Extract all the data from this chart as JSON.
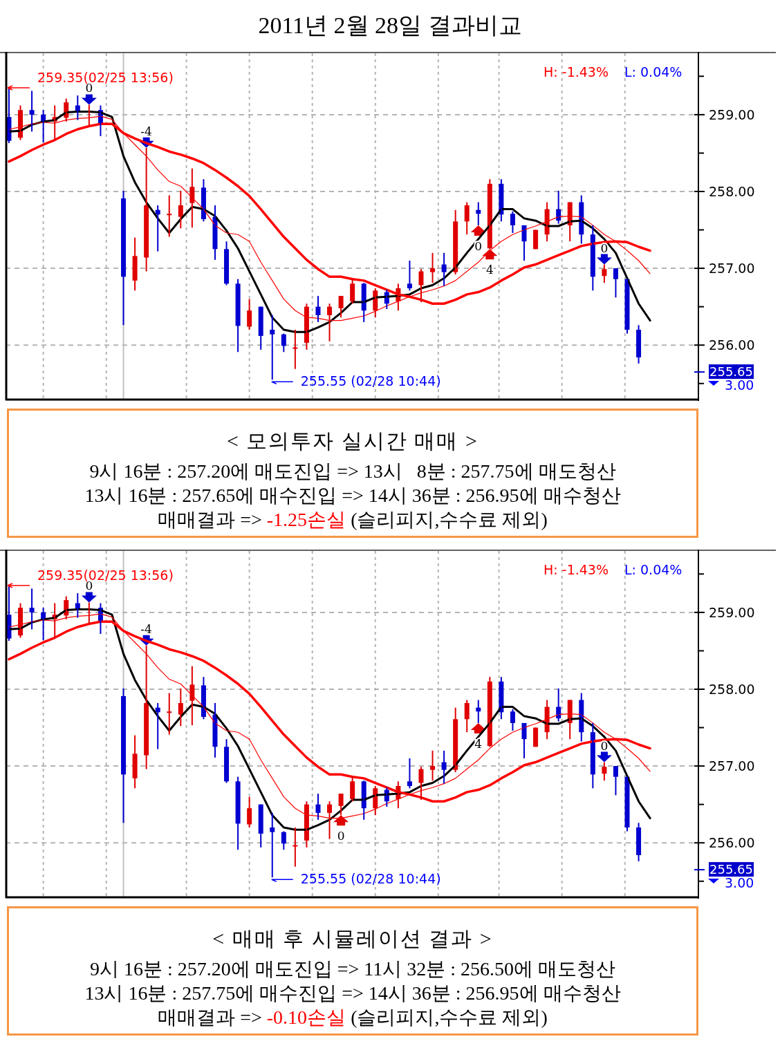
{
  "chart_data": [
    {
      "type": "candlestick",
      "title": "2011년 2월 28일 결과비교",
      "categories": [
        null,
        null,
        null,
        null,
        null,
        null,
        null,
        null,
        null,
        null,
        null,
        null,
        null,
        null,
        null,
        null,
        null,
        null,
        null,
        null,
        null,
        null,
        null,
        null,
        null,
        null,
        null,
        null,
        null,
        null,
        null,
        null,
        null,
        null,
        null,
        null,
        null,
        null,
        null,
        null,
        null,
        null,
        null,
        null,
        null,
        null,
        null,
        null,
        null,
        null,
        null,
        null,
        null,
        null,
        null,
        null,
        null
      ],
      "ohlc": [
        [
          258.97,
          259.35,
          258.63,
          258.66
        ],
        [
          258.7,
          259.12,
          258.67,
          259.06
        ],
        [
          259.06,
          259.31,
          258.78,
          259.0
        ],
        [
          259.0,
          259.06,
          258.64,
          258.91
        ],
        [
          258.91,
          259.12,
          258.67,
          258.97
        ],
        [
          258.96,
          259.21,
          258.91,
          259.16
        ],
        [
          259.12,
          259.25,
          258.93,
          259.05
        ],
        [
          259.03,
          259.13,
          258.85,
          259.05
        ],
        [
          259.06,
          259.12,
          258.72,
          258.87
        ],
        null,
        [
          257.91,
          258.01,
          256.26,
          256.89
        ],
        [
          256.84,
          257.4,
          256.71,
          257.16
        ],
        [
          257.14,
          258.57,
          256.96,
          257.82
        ],
        [
          257.76,
          257.82,
          257.22,
          257.7
        ],
        [
          257.7,
          257.95,
          257.41,
          257.71
        ],
        [
          257.67,
          258.01,
          257.52,
          257.82
        ],
        [
          257.85,
          258.3,
          257.53,
          258.06
        ],
        [
          258.05,
          258.16,
          257.61,
          257.64
        ],
        [
          257.67,
          257.82,
          257.11,
          257.25
        ],
        [
          257.25,
          257.35,
          256.78,
          256.8
        ],
        [
          256.8,
          256.86,
          255.91,
          256.25
        ],
        [
          256.24,
          256.6,
          256.2,
          256.45
        ],
        [
          256.5,
          256.5,
          255.94,
          256.12
        ],
        [
          256.2,
          256.39,
          255.55,
          256.14
        ],
        [
          256.14,
          256.15,
          255.91,
          255.99
        ],
        [
          255.96,
          256.2,
          255.69,
          255.97
        ],
        [
          256.03,
          256.54,
          255.94,
          256.5
        ],
        [
          256.5,
          256.64,
          256.3,
          256.39
        ],
        [
          256.39,
          256.54,
          256.05,
          256.5
        ],
        [
          256.48,
          256.64,
          256.36,
          256.64
        ],
        [
          256.57,
          256.87,
          256.54,
          256.8
        ],
        [
          256.8,
          256.81,
          256.3,
          256.45
        ],
        [
          256.45,
          256.74,
          256.36,
          256.71
        ],
        [
          256.69,
          256.72,
          256.47,
          256.54
        ],
        [
          256.57,
          256.8,
          256.45,
          256.74
        ],
        [
          256.8,
          257.1,
          256.71,
          256.74
        ],
        [
          256.78,
          256.99,
          256.56,
          256.96
        ],
        [
          256.95,
          257.2,
          256.81,
          257.0
        ],
        [
          257.05,
          257.2,
          256.77,
          256.95
        ],
        [
          256.95,
          257.76,
          256.92,
          257.61
        ],
        [
          257.61,
          257.86,
          257.44,
          257.82
        ],
        [
          257.76,
          257.86,
          257.56,
          257.71
        ],
        [
          257.26,
          258.16,
          257.25,
          258.1
        ],
        [
          258.1,
          258.16,
          257.61,
          257.7
        ],
        [
          257.71,
          257.74,
          257.46,
          257.56
        ],
        [
          257.56,
          257.56,
          257.1,
          257.35
        ],
        [
          257.25,
          257.5,
          257.25,
          257.5
        ],
        [
          257.44,
          257.86,
          257.35,
          257.77
        ],
        [
          257.77,
          258.01,
          257.58,
          257.62
        ],
        [
          257.56,
          257.86,
          257.35,
          257.86
        ],
        [
          257.86,
          257.95,
          257.32,
          257.44
        ],
        [
          257.44,
          257.56,
          256.71,
          256.89
        ],
        [
          256.9,
          257.05,
          256.81,
          256.99
        ],
        [
          257.0,
          257.0,
          256.62,
          256.86
        ],
        [
          256.86,
          256.86,
          256.15,
          256.2
        ],
        [
          256.2,
          256.26,
          255.76,
          255.84
        ],
        null
      ],
      "series": [
        {
          "type": "line",
          "color": "#000000",
          "values": [
            258.78,
            258.79,
            258.87,
            258.91,
            258.93,
            259.03,
            259.04,
            259.04,
            259.03,
            258.97,
            258.46,
            258.12,
            257.86,
            257.65,
            257.46,
            257.64,
            257.8,
            257.77,
            257.68,
            257.49,
            257.26,
            256.96,
            256.66,
            256.36,
            256.2,
            256.17,
            256.17,
            256.23,
            256.3,
            256.42,
            256.56,
            256.56,
            256.62,
            256.63,
            256.64,
            256.66,
            256.74,
            256.78,
            256.87,
            257.01,
            257.2,
            257.38,
            257.56,
            257.77,
            257.77,
            257.65,
            257.62,
            257.55,
            257.55,
            257.61,
            257.62,
            257.52,
            257.38,
            257.2,
            256.87,
            256.54,
            256.32
          ]
        },
        {
          "type": "line",
          "color": "#ff0000",
          "values": [
            258.81,
            258.84,
            258.88,
            258.9,
            258.89,
            258.93,
            258.95,
            258.96,
            258.98,
            258.94,
            258.76,
            258.61,
            258.46,
            258.28,
            258.13,
            258.07,
            257.92,
            257.77,
            257.56,
            257.46,
            257.44,
            257.35,
            257.08,
            256.84,
            256.6,
            256.45,
            256.36,
            256.35,
            256.32,
            256.32,
            256.35,
            256.38,
            256.44,
            256.51,
            256.57,
            256.63,
            256.68,
            256.72,
            256.77,
            256.84,
            256.96,
            257.08,
            257.23,
            257.35,
            257.44,
            257.5,
            257.55,
            257.61,
            257.67,
            257.68,
            257.67,
            257.56,
            257.44,
            257.35,
            257.23,
            257.1,
            256.93
          ]
        },
        {
          "type": "line",
          "color": "#ff0000",
          "values": [
            258.39,
            258.46,
            258.54,
            258.61,
            258.67,
            258.75,
            258.81,
            258.85,
            258.88,
            258.88,
            258.76,
            258.69,
            258.63,
            258.58,
            258.52,
            258.48,
            258.43,
            258.37,
            258.28,
            258.18,
            258.07,
            257.94,
            257.77,
            257.59,
            257.41,
            257.26,
            257.11,
            256.99,
            256.89,
            256.89,
            256.86,
            256.84,
            256.78,
            256.72,
            256.66,
            256.63,
            256.59,
            256.54,
            256.54,
            256.59,
            256.66,
            256.69,
            256.75,
            256.84,
            256.92,
            257.01,
            257.05,
            257.11,
            257.17,
            257.23,
            257.29,
            257.32,
            257.34,
            257.35,
            257.34,
            257.28,
            257.23
          ]
        }
      ],
      "ylim": [
        255.3,
        259.8
      ],
      "yticks": [
        {
          "value": 259,
          "label": "259.00"
        },
        {
          "value": 258,
          "label": "258.00"
        },
        {
          "value": 257,
          "label": "257.00"
        },
        {
          "value": 256,
          "label": "256.00"
        }
      ],
      "grid": true,
      "tick_labels": "y",
      "ref_lines": [
        {
          "axis": "y",
          "value": 255.65,
          "label": "255.65",
          "color": "#0000cc"
        }
      ],
      "annotations": [
        "H: -1.43%",
        "L: 0.04%",
        "259.35(02/25 13:56)",
        "255.55 (02/28 10:44)",
        "3.00",
        {
          "text": "0",
          "y": 259.13
        },
        {
          "text": "-4",
          "y": 258.57
        },
        {
          "text": "0",
          "y": 257.56
        },
        {
          "text": "4",
          "y": 257.25
        },
        {
          "text": "0",
          "y": 257.05
        }
      ]
    },
    {
      "type": "other",
      "title": "< 모의투자 실시간 매매 >",
      "annotations": [
        "9시 16분 : 257.20에 매도진입 => 13시   8분 : 257.75에 매도청산",
        "13시 16분 : 257.65에 매수진입 => 14시 36분 : 256.95에 매수청산",
        "매매결과 => ",
        "-1.25손실",
        " (슬리피지,수수료 제외)"
      ]
    },
    {
      "type": "candlestick",
      "categories": [
        null,
        null,
        null,
        null,
        null,
        null,
        null,
        null,
        null,
        null,
        null,
        null,
        null,
        null,
        null,
        null,
        null,
        null,
        null,
        null,
        null,
        null,
        null,
        null,
        null,
        null,
        null,
        null,
        null,
        null,
        null,
        null,
        null,
        null,
        null,
        null,
        null,
        null,
        null,
        null,
        null,
        null,
        null,
        null,
        null,
        null,
        null,
        null,
        null,
        null,
        null,
        null,
        null,
        null,
        null,
        null,
        null
      ],
      "ohlc": [
        [
          258.97,
          259.35,
          258.63,
          258.66
        ],
        [
          258.7,
          259.12,
          258.67,
          259.06
        ],
        [
          259.06,
          259.31,
          258.78,
          259.0
        ],
        [
          259.0,
          259.06,
          258.64,
          258.91
        ],
        [
          258.91,
          259.12,
          258.67,
          258.97
        ],
        [
          258.96,
          259.21,
          258.91,
          259.16
        ],
        [
          259.12,
          259.25,
          258.93,
          259.05
        ],
        [
          259.03,
          259.13,
          258.85,
          259.05
        ],
        [
          259.06,
          259.12,
          258.72,
          258.87
        ],
        null,
        [
          257.91,
          258.01,
          256.26,
          256.89
        ],
        [
          256.84,
          257.4,
          256.71,
          257.16
        ],
        [
          257.14,
          258.57,
          256.96,
          257.82
        ],
        [
          257.76,
          257.82,
          257.22,
          257.7
        ],
        [
          257.7,
          257.95,
          257.41,
          257.71
        ],
        [
          257.67,
          258.01,
          257.52,
          257.82
        ],
        [
          257.85,
          258.3,
          257.53,
          258.06
        ],
        [
          258.05,
          258.16,
          257.61,
          257.64
        ],
        [
          257.67,
          257.82,
          257.11,
          257.25
        ],
        [
          257.25,
          257.35,
          256.78,
          256.8
        ],
        [
          256.8,
          256.86,
          255.91,
          256.25
        ],
        [
          256.24,
          256.6,
          256.2,
          256.45
        ],
        [
          256.5,
          256.5,
          255.94,
          256.12
        ],
        [
          256.2,
          256.39,
          255.55,
          256.14
        ],
        [
          256.14,
          256.15,
          255.91,
          255.99
        ],
        [
          255.96,
          256.2,
          255.69,
          255.97
        ],
        [
          256.03,
          256.54,
          255.94,
          256.5
        ],
        [
          256.5,
          256.64,
          256.3,
          256.39
        ],
        [
          256.39,
          256.54,
          256.05,
          256.5
        ],
        [
          256.48,
          256.64,
          256.36,
          256.64
        ],
        [
          256.57,
          256.87,
          256.54,
          256.8
        ],
        [
          256.8,
          256.81,
          256.3,
          256.45
        ],
        [
          256.45,
          256.74,
          256.36,
          256.71
        ],
        [
          256.69,
          256.72,
          256.47,
          256.54
        ],
        [
          256.57,
          256.8,
          256.45,
          256.74
        ],
        [
          256.8,
          257.1,
          256.71,
          256.74
        ],
        [
          256.78,
          256.99,
          256.56,
          256.96
        ],
        [
          256.95,
          257.2,
          256.81,
          257.0
        ],
        [
          257.05,
          257.2,
          256.77,
          256.95
        ],
        [
          256.95,
          257.76,
          256.92,
          257.61
        ],
        [
          257.61,
          257.86,
          257.44,
          257.82
        ],
        [
          257.76,
          257.86,
          257.56,
          257.71
        ],
        [
          257.26,
          258.16,
          257.25,
          258.1
        ],
        [
          258.1,
          258.16,
          257.61,
          257.7
        ],
        [
          257.71,
          257.74,
          257.46,
          257.56
        ],
        [
          257.56,
          257.56,
          257.1,
          257.35
        ],
        [
          257.25,
          257.5,
          257.25,
          257.5
        ],
        [
          257.44,
          257.86,
          257.35,
          257.77
        ],
        [
          257.77,
          258.01,
          257.58,
          257.62
        ],
        [
          257.56,
          257.86,
          257.35,
          257.86
        ],
        [
          257.86,
          257.95,
          257.32,
          257.44
        ],
        [
          257.44,
          257.56,
          256.71,
          256.89
        ],
        [
          256.9,
          257.05,
          256.81,
          256.99
        ],
        [
          257.0,
          257.0,
          256.62,
          256.86
        ],
        [
          256.86,
          256.86,
          256.15,
          256.2
        ],
        [
          256.2,
          256.26,
          255.76,
          255.84
        ],
        null
      ],
      "series": [
        {
          "type": "line",
          "color": "#000000",
          "values": [
            258.78,
            258.79,
            258.87,
            258.91,
            258.93,
            259.03,
            259.04,
            259.04,
            259.03,
            258.97,
            258.46,
            258.12,
            257.86,
            257.65,
            257.46,
            257.64,
            257.8,
            257.77,
            257.68,
            257.49,
            257.26,
            256.96,
            256.66,
            256.36,
            256.2,
            256.17,
            256.17,
            256.23,
            256.3,
            256.42,
            256.56,
            256.56,
            256.62,
            256.63,
            256.64,
            256.66,
            256.74,
            256.78,
            256.87,
            257.01,
            257.2,
            257.38,
            257.56,
            257.77,
            257.77,
            257.65,
            257.62,
            257.55,
            257.55,
            257.61,
            257.62,
            257.52,
            257.38,
            257.2,
            256.87,
            256.54,
            256.32
          ]
        },
        {
          "type": "line",
          "color": "#ff0000",
          "values": [
            258.81,
            258.84,
            258.88,
            258.9,
            258.89,
            258.93,
            258.95,
            258.96,
            258.98,
            258.94,
            258.76,
            258.61,
            258.46,
            258.28,
            258.13,
            258.07,
            257.92,
            257.77,
            257.56,
            257.46,
            257.44,
            257.35,
            257.08,
            256.84,
            256.6,
            256.45,
            256.36,
            256.35,
            256.32,
            256.32,
            256.35,
            256.38,
            256.44,
            256.51,
            256.57,
            256.63,
            256.68,
            256.72,
            256.77,
            256.84,
            256.96,
            257.08,
            257.23,
            257.35,
            257.44,
            257.5,
            257.55,
            257.61,
            257.67,
            257.68,
            257.67,
            257.56,
            257.44,
            257.35,
            257.23,
            257.1,
            256.93
          ]
        },
        {
          "type": "line",
          "color": "#ff0000",
          "values": [
            258.39,
            258.46,
            258.54,
            258.61,
            258.67,
            258.75,
            258.81,
            258.85,
            258.88,
            258.88,
            258.76,
            258.69,
            258.63,
            258.58,
            258.52,
            258.48,
            258.43,
            258.37,
            258.28,
            258.18,
            258.07,
            257.94,
            257.77,
            257.59,
            257.41,
            257.26,
            257.11,
            256.99,
            256.89,
            256.89,
            256.86,
            256.84,
            256.78,
            256.72,
            256.66,
            256.63,
            256.59,
            256.54,
            256.54,
            256.59,
            256.66,
            256.69,
            256.75,
            256.84,
            256.92,
            257.01,
            257.05,
            257.11,
            257.17,
            257.23,
            257.29,
            257.32,
            257.34,
            257.35,
            257.34,
            257.28,
            257.23
          ]
        }
      ],
      "ylim": [
        255.3,
        259.8
      ],
      "yticks": [
        {
          "value": 259,
          "label": "259.00"
        },
        {
          "value": 258,
          "label": "258.00"
        },
        {
          "value": 257,
          "label": "257.00"
        },
        {
          "value": 256,
          "label": "256.00"
        }
      ],
      "grid": true,
      "tick_labels": "y",
      "ref_lines": [
        {
          "axis": "y",
          "value": 255.65,
          "label": "255.65",
          "color": "#0000cc"
        }
      ],
      "annotations": [
        "H: -1.43%",
        "L: 0.04%",
        "259.35(02/25 13:56)",
        "255.55 (02/28 10:44)",
        "3.00",
        {
          "text": "0",
          "y": 259.13
        },
        {
          "text": "-4",
          "y": 258.57
        },
        {
          "text": "0",
          "y": 256.36
        },
        {
          "text": "4",
          "y": 257.56
        },
        {
          "text": "0",
          "y": 257.05
        }
      ]
    },
    {
      "type": "other",
      "title": "< 매매 후 시뮬레이션 결과 >",
      "annotations": [
        "9시 16분 : 257.20에 매도진입 => 11시 32분 : 256.50에 매도청산",
        "13시 16분 : 257.75에 매수진입 => 14시 36분 : 256.95에 매수청산",
        "매매결과 => ",
        "-0.10손실",
        " (슬리피지,수수료 제외)"
      ]
    }
  ]
}
